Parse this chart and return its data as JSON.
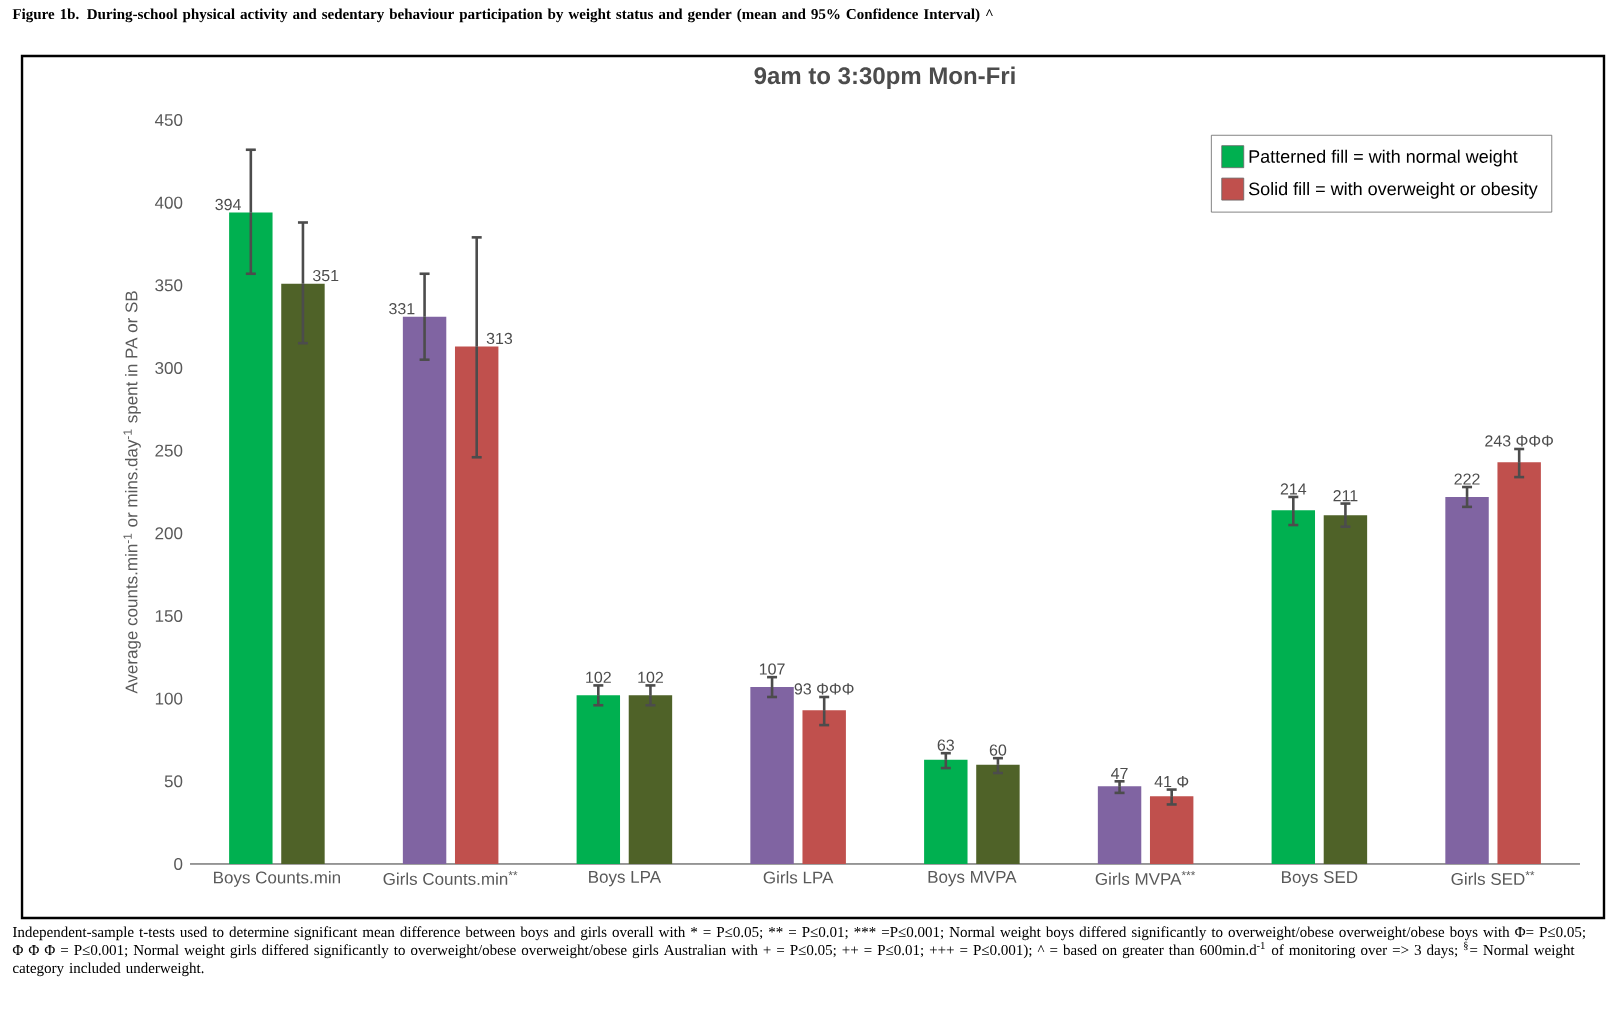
{
  "chart_data": {
    "type": "bar",
    "title": "Figure 1b. During-school physical activity and sedentary behaviour participation by weight status and gender (mean and 95% Confidence Interval) ^",
    "subtitle": "9am to 3:30pm Mon-Fri",
    "ylabel": "Average counts.min$^{-1}$ or mins.day$^{-1}$ spent in PA or SB",
    "categories": [
      "Boys Counts.min",
      "Girls Counts.min$^{**}$",
      "Boys LPA",
      "Girls LPA",
      "Boys MVPA",
      "Girls MVPA$^{***}$",
      "Boys SED",
      "Girls SED$^{**}$"
    ],
    "series": [
      {
        "name": "Patterned fill = with normal weight",
        "color": "#00b050",
        "colors": [
          "#00b050",
          "#8064a2",
          "#00b050",
          "#8064a2",
          "#00b050",
          "#8064a2",
          "#00b050",
          "#8064a2"
        ],
        "values": [
          394,
          331,
          102,
          107,
          63,
          47,
          214,
          222
        ],
        "errors": [
          [
            357,
            432
          ],
          [
            305,
            357
          ],
          [
            96,
            108
          ],
          [
            101,
            113
          ],
          [
            58,
            67
          ],
          [
            43,
            50
          ],
          [
            205,
            222
          ],
          [
            216,
            228
          ]
        ],
        "value_labels": [
          "394",
          "331",
          "102",
          "107",
          "63",
          "47",
          "214",
          "222"
        ]
      },
      {
        "name": "Solid fill = with overweight or obesity",
        "color": "#c0504d",
        "colors": [
          "#4f6228",
          "#c0504d",
          "#4f6228",
          "#c0504d",
          "#4f6228",
          "#c0504d",
          "#4f6228",
          "#c0504d"
        ],
        "values": [
          351,
          313,
          102,
          93,
          60,
          41,
          211,
          243
        ],
        "errors": [
          [
            315,
            388
          ],
          [
            246,
            379
          ],
          [
            96,
            108
          ],
          [
            84,
            101
          ],
          [
            55,
            64
          ],
          [
            36,
            45
          ],
          [
            204,
            218
          ],
          [
            234,
            251
          ]
        ],
        "value_labels": [
          "351",
          "313",
          "102",
          "93 ΦΦΦ",
          "60",
          "41 Φ",
          "211",
          "243 ΦΦΦ"
        ]
      }
    ],
    "ylim": [
      0,
      450
    ],
    "yticks": [
      0,
      50,
      100,
      150,
      200,
      250,
      300,
      350,
      400,
      450
    ],
    "legend": "top right",
    "grid": false,
    "annotations": [
      "Independent-sample t-tests used to determine significant mean difference between boys and girls overall with * = P≤0.05; ** = P≤0.01; *** =P≤0.001; Normal weight boys differed significantly to overweight/obese overweight/obese boys with Φ= P≤0.05; Φ Φ Φ = P≤0.001; Normal weight girls differed significantly to overweight/obese overweight/obese girls Australian with + = P≤0.05; ++ = P≤0.01; +++ = P≤0.001); ^ = based on greater than 600min.d$^{-1}$ of monitoring over => 3 days; $^{§}$= Normal weight category included underweight."
    ]
  }
}
